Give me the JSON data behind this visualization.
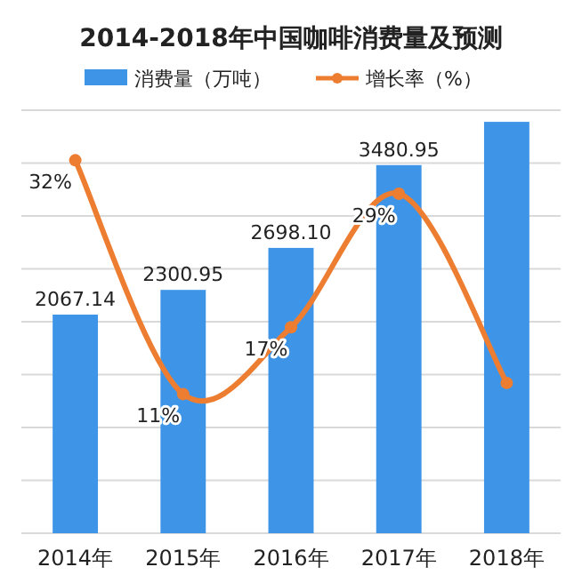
{
  "chart_data": {
    "type": "bar",
    "title": "2014-2018年中国咖啡消费量及预测",
    "categories": [
      "2014年",
      "2015年",
      "2016年",
      "2017年",
      "2018年"
    ],
    "series": [
      {
        "name": "消费量（万吨）",
        "color": "#3e95e8",
        "values": [
          2067.14,
          2300.95,
          2698.1,
          3480.95,
          3890
        ],
        "value_labels": [
          "2067.14",
          "2300.95",
          "2698.10",
          "3480.95",
          null
        ]
      },
      {
        "name": "增长率（%）",
        "type": "line",
        "axis": "y2",
        "color": "#ed7d31",
        "values": [
          32,
          11,
          17,
          29,
          12
        ],
        "value_labels": [
          "32%",
          "11%",
          "17%",
          "29%",
          null
        ]
      }
    ],
    "ylim": [
      0,
      4000
    ],
    "yticks": [
      {
        "value": 0,
        "label": null
      },
      {
        "value": 500,
        "label": null
      },
      {
        "value": 1000,
        "label": null
      },
      {
        "value": 1500,
        "label": null
      },
      {
        "value": 2000,
        "label": null
      },
      {
        "value": 2500,
        "label": null
      },
      {
        "value": 3000,
        "label": null
      },
      {
        "value": 3500,
        "label": null
      },
      {
        "value": 4000,
        "label": null
      }
    ],
    "y2lim": [
      -1.5,
      36.5
    ],
    "grid": "y",
    "legend": "top",
    "marker": "circle",
    "tick_labels": "x"
  }
}
